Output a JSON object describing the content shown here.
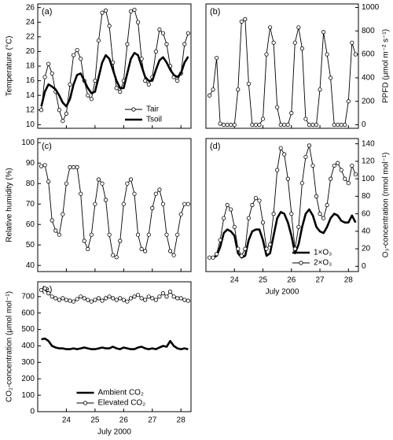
{
  "chart_data": [
    {
      "type": "line",
      "panel_label": "(a)",
      "y_label": "Temperature (°C)",
      "yaxis_side": "left",
      "x": [
        23.125,
        23.25,
        23.375,
        23.5,
        23.625,
        23.75,
        23.875,
        24.0,
        24.125,
        24.25,
        24.375,
        24.5,
        24.625,
        24.75,
        24.875,
        25.0,
        25.125,
        25.25,
        25.375,
        25.5,
        25.625,
        25.75,
        25.875,
        26.0,
        26.125,
        26.25,
        26.375,
        26.5,
        26.625,
        26.75,
        26.875,
        27.0,
        27.125,
        27.25,
        27.375,
        27.5,
        27.625,
        27.75,
        27.875,
        28.0,
        28.125,
        28.25
      ],
      "xlim": [
        23.0,
        28.35
      ],
      "xticks": [
        24,
        25,
        26,
        27,
        28
      ],
      "show_xtick_labels": false,
      "ylim": [
        9.5,
        26.5
      ],
      "yticks": [
        10,
        12,
        14,
        16,
        18,
        20,
        22,
        24,
        26
      ],
      "grid": false,
      "legend": "lower right",
      "series": [
        {
          "name": "Tair",
          "color": "#000000",
          "style": "markers",
          "values": [
            12.0,
            16.5,
            18.3,
            17.0,
            14.5,
            12.0,
            10.5,
            11.5,
            15.5,
            19.5,
            20.2,
            19.0,
            16.0,
            14.0,
            13.5,
            16.0,
            21.5,
            25.3,
            25.6,
            23.5,
            18.5,
            15.0,
            14.5,
            16.0,
            21.0,
            25.5,
            25.7,
            24.0,
            19.0,
            16.0,
            15.5,
            16.5,
            20.0,
            23.0,
            22.5,
            21.0,
            18.0,
            16.5,
            16.0,
            17.0,
            21.0,
            22.5
          ]
        },
        {
          "name": "Tsoil",
          "color": "#000000",
          "style": "thick",
          "values": [
            12.5,
            14.5,
            15.5,
            15.2,
            14.8,
            14.0,
            13.0,
            12.5,
            13.5,
            15.5,
            16.8,
            17.0,
            16.0,
            15.0,
            14.3,
            14.5,
            16.5,
            18.5,
            19.5,
            19.0,
            17.5,
            16.0,
            15.0,
            15.0,
            17.0,
            19.0,
            19.8,
            19.5,
            18.0,
            16.5,
            16.0,
            16.0,
            17.5,
            18.8,
            19.2,
            18.5,
            17.5,
            16.8,
            16.5,
            17.0,
            18.5,
            19.3
          ]
        }
      ]
    },
    {
      "type": "line",
      "panel_label": "(b)",
      "y_label": "PPFD (μmol m⁻² s⁻¹)",
      "yaxis_side": "right",
      "x": [
        23.125,
        23.25,
        23.375,
        23.5,
        23.625,
        23.75,
        23.875,
        24.0,
        24.125,
        24.25,
        24.375,
        24.5,
        24.625,
        24.75,
        24.875,
        25.0,
        25.125,
        25.25,
        25.375,
        25.5,
        25.625,
        25.75,
        25.875,
        26.0,
        26.125,
        26.25,
        26.375,
        26.5,
        26.625,
        26.75,
        26.875,
        27.0,
        27.125,
        27.25,
        27.375,
        27.5,
        27.625,
        27.75,
        27.875,
        28.0,
        28.125,
        28.25
      ],
      "xlim": [
        23.0,
        28.35
      ],
      "xticks": [
        24,
        25,
        26,
        27,
        28
      ],
      "show_xtick_labels": false,
      "ylim": [
        -30,
        1030
      ],
      "yticks": [
        0,
        200,
        400,
        600,
        800,
        1000
      ],
      "grid": false,
      "series": [
        {
          "color": "#000000",
          "style": "markers",
          "values": [
            250,
            300,
            570,
            10,
            0,
            0,
            0,
            0,
            300,
            880,
            900,
            350,
            0,
            0,
            0,
            50,
            600,
            830,
            700,
            150,
            0,
            0,
            0,
            100,
            700,
            830,
            650,
            50,
            0,
            0,
            0,
            300,
            790,
            600,
            400,
            0,
            0,
            0,
            0,
            200,
            700,
            600
          ]
        }
      ]
    },
    {
      "type": "line",
      "panel_label": "(c)",
      "y_label": "Relative humidity (%)",
      "yaxis_side": "left",
      "x": [
        23.125,
        23.25,
        23.375,
        23.5,
        23.625,
        23.75,
        23.875,
        24.0,
        24.125,
        24.25,
        24.375,
        24.5,
        24.625,
        24.75,
        24.875,
        25.0,
        25.125,
        25.25,
        25.375,
        25.5,
        25.625,
        25.75,
        25.875,
        26.0,
        26.125,
        26.25,
        26.375,
        26.5,
        26.625,
        26.75,
        26.875,
        27.0,
        27.125,
        27.25,
        27.375,
        27.5,
        27.625,
        27.75,
        27.875,
        28.0,
        28.125,
        28.25
      ],
      "xlim": [
        23.0,
        28.35
      ],
      "xticks": [
        24,
        25,
        26,
        27,
        28
      ],
      "show_xtick_labels": false,
      "ylim": [
        37,
        102
      ],
      "yticks": [
        40,
        50,
        60,
        70,
        80,
        90,
        100
      ],
      "grid": false,
      "series": [
        {
          "color": "#000000",
          "style": "markers",
          "values": [
            88.5,
            89,
            81,
            62,
            57,
            55,
            65,
            80,
            88,
            88,
            88,
            75,
            52,
            48,
            55,
            70,
            82,
            80,
            72,
            55,
            45,
            44,
            52,
            70,
            80,
            82,
            75,
            55,
            48,
            47,
            55,
            68,
            75,
            77,
            70,
            55,
            47,
            45,
            55,
            65,
            70,
            70
          ]
        }
      ]
    },
    {
      "type": "line",
      "panel_label": "(d)",
      "y_label": "O₃-concentration (nmol mol⁻¹)",
      "yaxis_side": "right",
      "x_label": "July 2000",
      "x": [
        23.125,
        23.25,
        23.375,
        23.5,
        23.625,
        23.75,
        23.875,
        24.0,
        24.125,
        24.25,
        24.375,
        24.5,
        24.625,
        24.75,
        24.875,
        25.0,
        25.125,
        25.25,
        25.375,
        25.5,
        25.625,
        25.75,
        25.875,
        26.0,
        26.125,
        26.25,
        26.375,
        26.5,
        26.625,
        26.75,
        26.875,
        27.0,
        27.125,
        27.25,
        27.375,
        27.5,
        27.625,
        27.75,
        27.875,
        28.0,
        28.125,
        28.25
      ],
      "xlim": [
        23.0,
        28.35
      ],
      "xticks": [
        24,
        25,
        26,
        27,
        28
      ],
      "show_xtick_labels": true,
      "ylim": [
        -6,
        146
      ],
      "yticks": [
        0,
        20,
        40,
        60,
        80,
        100,
        120,
        140
      ],
      "grid": false,
      "legend": "lower right",
      "series": [
        {
          "name": "1×O₃",
          "color": "#000000",
          "style": "thick",
          "values": [
            10,
            10,
            12,
            22,
            38,
            42,
            40,
            35,
            15,
            10,
            12,
            30,
            40,
            42,
            42,
            30,
            12,
            15,
            35,
            55,
            62,
            60,
            50,
            35,
            15,
            25,
            45,
            60,
            65,
            58,
            45,
            40,
            38,
            45,
            55,
            60,
            58,
            52,
            50,
            50,
            58,
            50
          ]
        },
        {
          "name": "2×O₃",
          "color": "#000000",
          "style": "markers",
          "values": [
            10,
            10,
            14,
            30,
            55,
            70,
            65,
            45,
            20,
            12,
            20,
            55,
            70,
            78,
            75,
            50,
            20,
            25,
            60,
            110,
            135,
            128,
            100,
            60,
            20,
            45,
            95,
            125,
            138,
            115,
            80,
            60,
            55,
            70,
            100,
            115,
            118,
            110,
            100,
            95,
            115,
            105
          ]
        }
      ]
    },
    {
      "type": "line",
      "panel_label": "(e)",
      "y_label": "CO₂-concentration (μmol mol⁻¹)",
      "yaxis_side": "left",
      "x_label": "July 2000",
      "x": [
        23.125,
        23.25,
        23.375,
        23.5,
        23.625,
        23.75,
        23.875,
        24.0,
        24.125,
        24.25,
        24.375,
        24.5,
        24.625,
        24.75,
        24.875,
        25.0,
        25.125,
        25.25,
        25.375,
        25.5,
        25.625,
        25.75,
        25.875,
        26.0,
        26.125,
        26.25,
        26.375,
        26.5,
        26.625,
        26.75,
        26.875,
        27.0,
        27.125,
        27.25,
        27.375,
        27.5,
        27.625,
        27.75,
        27.875,
        28.0,
        28.125,
        28.25
      ],
      "xlim": [
        23.0,
        28.35
      ],
      "xticks": [
        24,
        25,
        26,
        27,
        28
      ],
      "show_xtick_labels": true,
      "ylim": [
        0,
        790
      ],
      "yticks": [
        0,
        100,
        200,
        300,
        400,
        500,
        600,
        700
      ],
      "grid": false,
      "legend": "lower center",
      "series": [
        {
          "name": "Ambient CO₂",
          "color": "#000000",
          "style": "thick",
          "values": [
            440,
            445,
            430,
            400,
            390,
            385,
            385,
            380,
            380,
            385,
            380,
            385,
            390,
            385,
            380,
            380,
            385,
            390,
            385,
            385,
            395,
            385,
            380,
            390,
            385,
            380,
            380,
            390,
            395,
            385,
            380,
            385,
            380,
            390,
            400,
            395,
            430,
            400,
            385,
            380,
            385,
            380
          ]
        },
        {
          "name": "Elevated CO₂",
          "color": "#000000",
          "style": "markers",
          "values": [
            740,
            750,
            720,
            700,
            690,
            680,
            690,
            680,
            675,
            670,
            685,
            700,
            690,
            680,
            670,
            680,
            690,
            675,
            690,
            700,
            690,
            680,
            690,
            680,
            670,
            690,
            700,
            710,
            690,
            680,
            700,
            690,
            680,
            700,
            720,
            700,
            730,
            700,
            690,
            690,
            680,
            675
          ]
        }
      ]
    }
  ]
}
